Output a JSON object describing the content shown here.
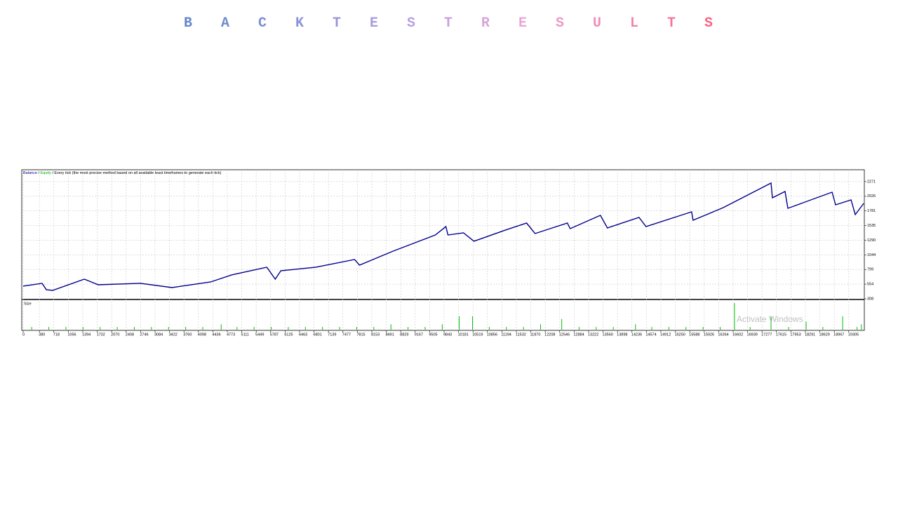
{
  "header": {
    "title": "BACKTESTRESULTS"
  },
  "chart_data": {
    "type": "line",
    "legend_separator": "/",
    "legend_note": "Every tick (the most precise method based on all available least timeframes to generate each tick)",
    "watermark": "Activate Windows",
    "x": [
      0,
      443,
      542,
      690,
      1430,
      1593,
      1757,
      2742,
      3481,
      4384,
      4877,
      5698,
      5895,
      6026,
      6847,
      7750,
      7865,
      8653,
      9639,
      9885,
      9934,
      10296,
      10542,
      11281,
      11773,
      11970,
      12726,
      12791,
      13498,
      13662,
      14401,
      14565,
      15632,
      15665,
      16371,
      17488,
      17521,
      17816,
      17882,
      18916,
      18998,
      19360,
      19458,
      19655
    ],
    "series": [
      {
        "name": "Balance",
        "color": "#00008b",
        "values": [
          520,
          567,
          460,
          449,
          637,
          590,
          543,
          567,
          496,
          590,
          708,
          837,
          637,
          778,
          837,
          966,
          872,
          1107,
          1377,
          1518,
          1377,
          1413,
          1272,
          1460,
          1577,
          1401,
          1577,
          1483,
          1706,
          1495,
          1671,
          1518,
          1765,
          1624,
          1835,
          2247,
          2000,
          2106,
          1824,
          2094,
          1882,
          1965,
          1718,
          1906
        ]
      },
      {
        "name": "Equity",
        "color": "#00b000",
        "values": [
          null,
          null,
          null,
          null,
          null,
          null,
          null,
          null,
          null,
          null,
          null,
          null,
          null,
          null,
          null,
          null,
          null,
          null,
          null,
          null,
          null,
          null,
          null,
          null,
          null,
          null,
          null,
          null,
          null,
          null,
          null,
          null,
          null,
          null,
          null,
          null,
          null,
          null,
          null,
          null,
          null,
          null,
          null,
          null
        ]
      }
    ],
    "xlim": [
      0,
      19670
    ],
    "xticks": [
      0,
      380,
      718,
      1056,
      1394,
      1732,
      2070,
      2408,
      2746,
      3084,
      3422,
      3760,
      4098,
      4436,
      4773,
      5111,
      5449,
      5787,
      6125,
      6463,
      6801,
      7139,
      7477,
      7815,
      8153,
      8491,
      8829,
      9167,
      9505,
      9843,
      10181,
      10519,
      10856,
      11194,
      11532,
      11870,
      12208,
      12546,
      12884,
      13222,
      13560,
      13898,
      14236,
      14574,
      14912,
      15250,
      15588,
      15926,
      16264,
      16602,
      16939,
      17277,
      17615,
      17953,
      18291,
      18629,
      18967,
      19305
    ],
    "ylim": [
      308,
      2470
    ],
    "yticks": [
      308,
      554,
      799,
      1044,
      1290,
      1535,
      1781,
      2026,
      2271
    ],
    "grid": true,
    "size_panel": {
      "label": "Size",
      "color": "#00c000",
      "x": [
        200,
        600,
        1000,
        1400,
        1800,
        2200,
        2600,
        3000,
        3400,
        3800,
        4200,
        4630,
        5000,
        5400,
        5800,
        6200,
        6600,
        7000,
        7400,
        7800,
        8200,
        8600,
        9000,
        9400,
        9800,
        10197,
        10509,
        10900,
        11300,
        11700,
        12100,
        12594,
        13000,
        13400,
        13800,
        14319,
        14700,
        15100,
        15500,
        15900,
        16300,
        16634,
        17000,
        17488,
        17900,
        18309,
        18700,
        19163,
        19500,
        19600
      ],
      "values": [
        1,
        1,
        1,
        1,
        1,
        1,
        1,
        1,
        1,
        1,
        1,
        2,
        1,
        1,
        1,
        1,
        1,
        1,
        1,
        1,
        1,
        2,
        1,
        1,
        2,
        5,
        5,
        1,
        1,
        1,
        2,
        4,
        1,
        1,
        1,
        2,
        1,
        1,
        1,
        1,
        1,
        10,
        1,
        5,
        1,
        3,
        1,
        5,
        1,
        2
      ]
    }
  }
}
